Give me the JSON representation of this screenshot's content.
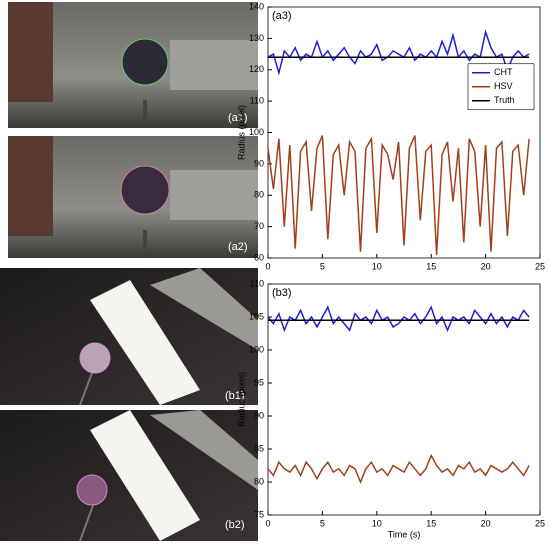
{
  "panels": [
    "(a1)",
    "(a2)",
    "(b1)",
    "(b2)"
  ],
  "chart_data": [
    {
      "type": "line",
      "label": "(a3)",
      "ylabel": "Radius (pixel)",
      "x": [
        0,
        0.5,
        1,
        1.5,
        2,
        2.5,
        3,
        3.5,
        4,
        4.5,
        5,
        5.5,
        6,
        6.5,
        7,
        7.5,
        8,
        8.5,
        9,
        9.5,
        10,
        10.5,
        11,
        11.5,
        12,
        12.5,
        13,
        13.5,
        14,
        14.5,
        15,
        15.5,
        16,
        16.5,
        17,
        17.5,
        18,
        18.5,
        19,
        19.5,
        20,
        20.5,
        21,
        21.5,
        22,
        22.5,
        23,
        23.5,
        24
      ],
      "series": [
        {
          "name": "CHT",
          "color": "#1f1fd6",
          "values": [
            124,
            125,
            119,
            126,
            124,
            127,
            123,
            125,
            124,
            129,
            124,
            126,
            123,
            125,
            127,
            124,
            122,
            126,
            124,
            125,
            128,
            123,
            124,
            126,
            125,
            124,
            127,
            123,
            125,
            124,
            126,
            124,
            129,
            125,
            131,
            124,
            126,
            123,
            125,
            124,
            132,
            127,
            124,
            125,
            120,
            124,
            126,
            124,
            125
          ]
        },
        {
          "name": "HSV",
          "color": "#a0401c",
          "values": [
            95,
            82,
            98,
            70,
            96,
            63,
            94,
            97,
            75,
            95,
            99,
            66,
            93,
            96,
            80,
            97,
            94,
            62,
            95,
            98,
            68,
            96,
            93,
            85,
            97,
            64,
            95,
            99,
            72,
            94,
            96,
            61,
            93,
            97,
            78,
            95,
            65,
            98,
            94,
            70,
            96,
            62,
            95,
            97,
            67,
            94,
            96,
            80,
            98
          ]
        },
        {
          "name": "Truth",
          "color": "#000000",
          "x": [
            0,
            24
          ],
          "values": [
            124,
            124
          ]
        }
      ],
      "xlim": [
        0,
        25
      ],
      "xticks": [
        0,
        5,
        10,
        15,
        20,
        25
      ],
      "ylim": [
        60,
        140
      ],
      "yticks": [
        60,
        70,
        80,
        90,
        100,
        110,
        120,
        130,
        140
      ],
      "legend": "right"
    },
    {
      "type": "line",
      "label": "(b3)",
      "ylabel": "Radius (pixel)",
      "xlabel": "Time (s)",
      "x": [
        0,
        0.5,
        1,
        1.5,
        2,
        2.5,
        3,
        3.5,
        4,
        4.5,
        5,
        5.5,
        6,
        6.5,
        7,
        7.5,
        8,
        8.5,
        9,
        9.5,
        10,
        10.5,
        11,
        11.5,
        12,
        12.5,
        13,
        13.5,
        14,
        14.5,
        15,
        15.5,
        16,
        16.5,
        17,
        17.5,
        18,
        18.5,
        19,
        19.5,
        20,
        20.5,
        21,
        21.5,
        22,
        22.5,
        23,
        23.5,
        24
      ],
      "series": [
        {
          "name": "CHT",
          "color": "#1f1fd6",
          "values": [
            105,
            104,
            105.5,
            103,
            105,
            104.5,
            106,
            104,
            105,
            103.5,
            105,
            106.5,
            104,
            105,
            104,
            103,
            105.5,
            104.5,
            105,
            104,
            106,
            104.5,
            105,
            103.5,
            104,
            105,
            104.5,
            105.5,
            104,
            105,
            106.5,
            104,
            105,
            103,
            105,
            104.5,
            105,
            104,
            106,
            105,
            104,
            105.5,
            104,
            105,
            103.5,
            105,
            104.5,
            106,
            105
          ]
        },
        {
          "name": "HSV",
          "color": "#a0401c",
          "values": [
            82,
            81,
            83,
            82,
            81.5,
            82.5,
            81,
            83,
            82,
            80.5,
            82,
            83,
            81.5,
            82,
            81,
            82.5,
            82,
            80,
            82,
            83,
            81.5,
            82,
            81,
            82.5,
            82,
            81.5,
            83,
            82,
            81,
            82,
            84,
            82.5,
            81.5,
            82,
            81,
            82.5,
            82,
            83,
            81.5,
            82,
            81,
            82.5,
            82,
            81.5,
            82,
            83,
            82,
            81,
            82.5
          ]
        },
        {
          "name": "Truth",
          "color": "#000000",
          "x": [
            0,
            24
          ],
          "values": [
            104.5,
            104.5
          ]
        }
      ],
      "xlim": [
        0,
        25
      ],
      "xticks": [
        0,
        5,
        10,
        15,
        20,
        25
      ],
      "ylim": [
        75,
        110
      ],
      "yticks": [
        75,
        80,
        85,
        90,
        95,
        100,
        105,
        110
      ]
    }
  ]
}
